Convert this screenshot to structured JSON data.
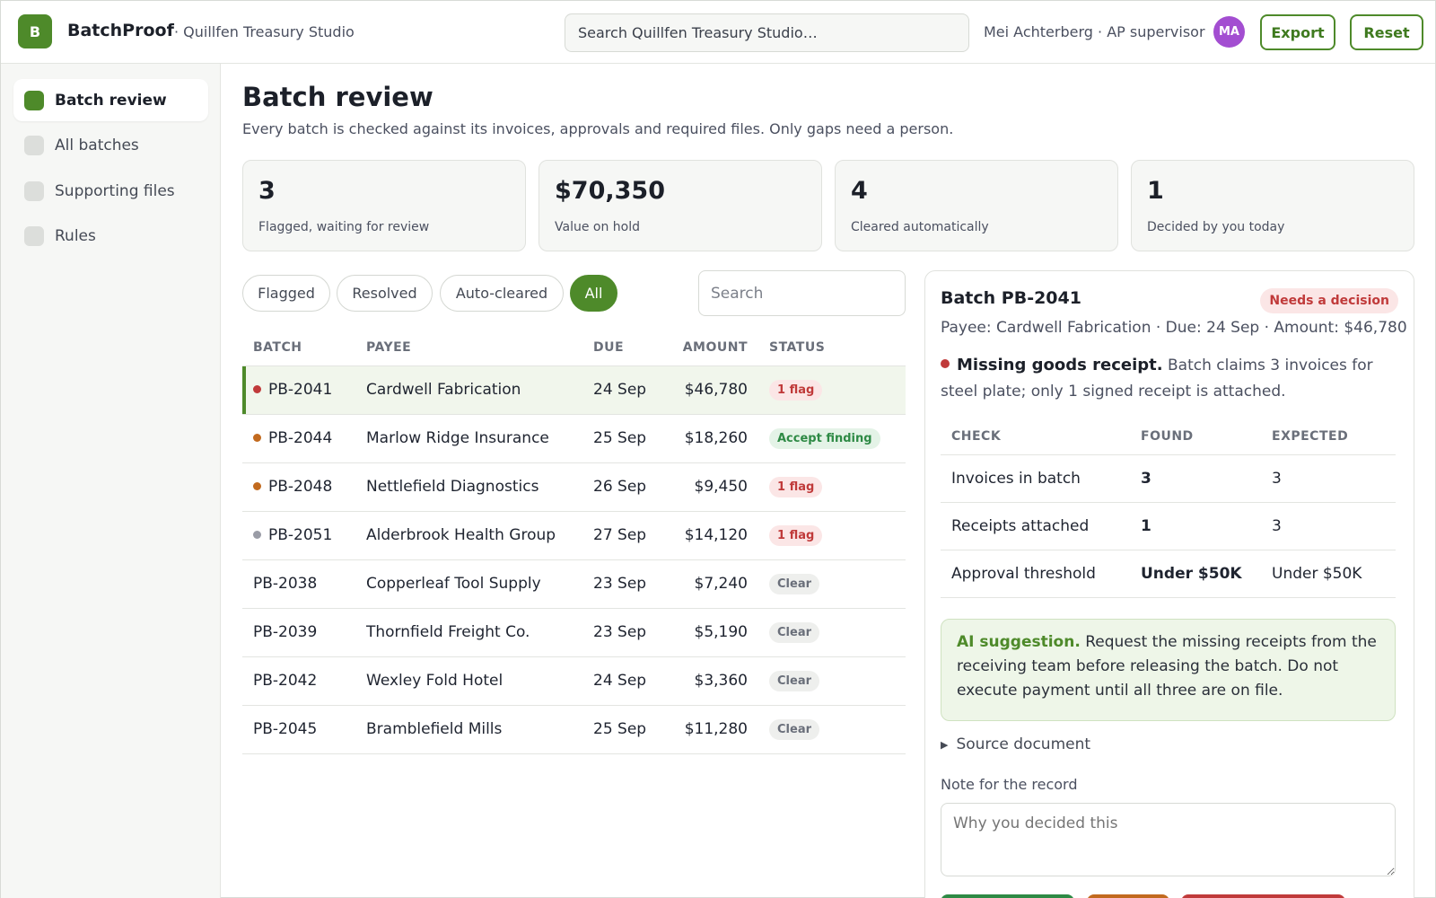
{
  "app": {
    "logo_letter": "B",
    "name": "BatchProof",
    "org": "· Quillfen Treasury Studio",
    "search_placeholder": "Search Quillfen Treasury Studio…",
    "user": "Mei Achterberg · AP supervisor",
    "avatar_initials": "MA",
    "export_label": "Export",
    "reset_label": "Reset"
  },
  "sidebar": {
    "items": [
      {
        "label": "Batch review",
        "active": true
      },
      {
        "label": "All batches"
      },
      {
        "label": "Supporting files"
      },
      {
        "label": "Rules"
      }
    ]
  },
  "page": {
    "title": "Batch review",
    "subtitle": "Every batch is checked against its invoices, approvals and required files. Only gaps need a person."
  },
  "stats": [
    {
      "value": "3",
      "label": "Flagged, waiting for review"
    },
    {
      "value": "$70,350",
      "label": "Value on hold"
    },
    {
      "value": "4",
      "label": "Cleared automatically"
    },
    {
      "value": "1",
      "label": "Decided by you today"
    }
  ],
  "filters": {
    "chips": [
      "Flagged",
      "Resolved",
      "Auto-cleared",
      "All"
    ],
    "active": "All",
    "search_placeholder": "Search"
  },
  "table": {
    "headers": [
      "BATCH",
      "PAYEE",
      "DUE",
      "AMOUNT",
      "STATUS"
    ],
    "rows": [
      {
        "batch": "PB-2041",
        "payee": "Cardwell Fabrication",
        "due": "24 Sep",
        "amount": "$46,780",
        "status": "1 flag",
        "status_kind": "flag",
        "dot": "#c03a3a",
        "selected": true
      },
      {
        "batch": "PB-2044",
        "payee": "Marlow Ridge Insurance",
        "due": "25 Sep",
        "amount": "$18,260",
        "status": "Accept finding",
        "status_kind": "accept",
        "dot": "#c26a1e"
      },
      {
        "batch": "PB-2048",
        "payee": "Nettlefield Diagnostics",
        "due": "26 Sep",
        "amount": "$9,450",
        "status": "1 flag",
        "status_kind": "flag",
        "dot": "#c26a1e"
      },
      {
        "batch": "PB-2051",
        "payee": "Alderbrook Health Group",
        "due": "27 Sep",
        "amount": "$14,120",
        "status": "1 flag",
        "status_kind": "flag",
        "dot": "#9a9ca6"
      },
      {
        "batch": "PB-2038",
        "payee": "Copperleaf Tool Supply",
        "due": "23 Sep",
        "amount": "$7,240",
        "status": "Clear",
        "status_kind": "clear"
      },
      {
        "batch": "PB-2039",
        "payee": "Thornfield Freight Co.",
        "due": "23 Sep",
        "amount": "$5,190",
        "status": "Clear",
        "status_kind": "clear"
      },
      {
        "batch": "PB-2042",
        "payee": "Wexley Fold Hotel",
        "due": "24 Sep",
        "amount": "$3,360",
        "status": "Clear",
        "status_kind": "clear"
      },
      {
        "batch": "PB-2045",
        "payee": "Bramblefield Mills",
        "due": "25 Sep",
        "amount": "$11,280",
        "status": "Clear",
        "status_kind": "clear"
      }
    ]
  },
  "detail": {
    "title": "Batch PB-2041",
    "badge": "Needs a decision",
    "meta": "Payee: Cardwell Fabrication · Due: 24 Sep · Amount: $46,780",
    "finding_title": "Missing goods receipt.",
    "finding_text": "Batch claims 3 invoices for steel plate; only 1 signed receipt is attached.",
    "checks_headers": [
      "CHECK",
      "FOUND",
      "EXPECTED"
    ],
    "checks": [
      {
        "check": "Invoices in batch",
        "found": "3",
        "found_state": "ok",
        "expected": "3"
      },
      {
        "check": "Receipts attached",
        "found": "1",
        "found_state": "bad",
        "expected": "3"
      },
      {
        "check": "Approval threshold",
        "found": "Under $50K",
        "found_state": "ok",
        "expected": "Under $50K"
      }
    ],
    "ai_label": "AI suggestion.",
    "ai_text": "Request the missing receipts from the receiving team before releasing the batch. Do not execute payment until all three are on file.",
    "source_doc": "Source document",
    "note_label": "Note for the record",
    "note_placeholder": "Why you decided this",
    "action_colors": [
      "#2e8a45",
      "#c26a1e",
      "#c03a3a"
    ]
  }
}
